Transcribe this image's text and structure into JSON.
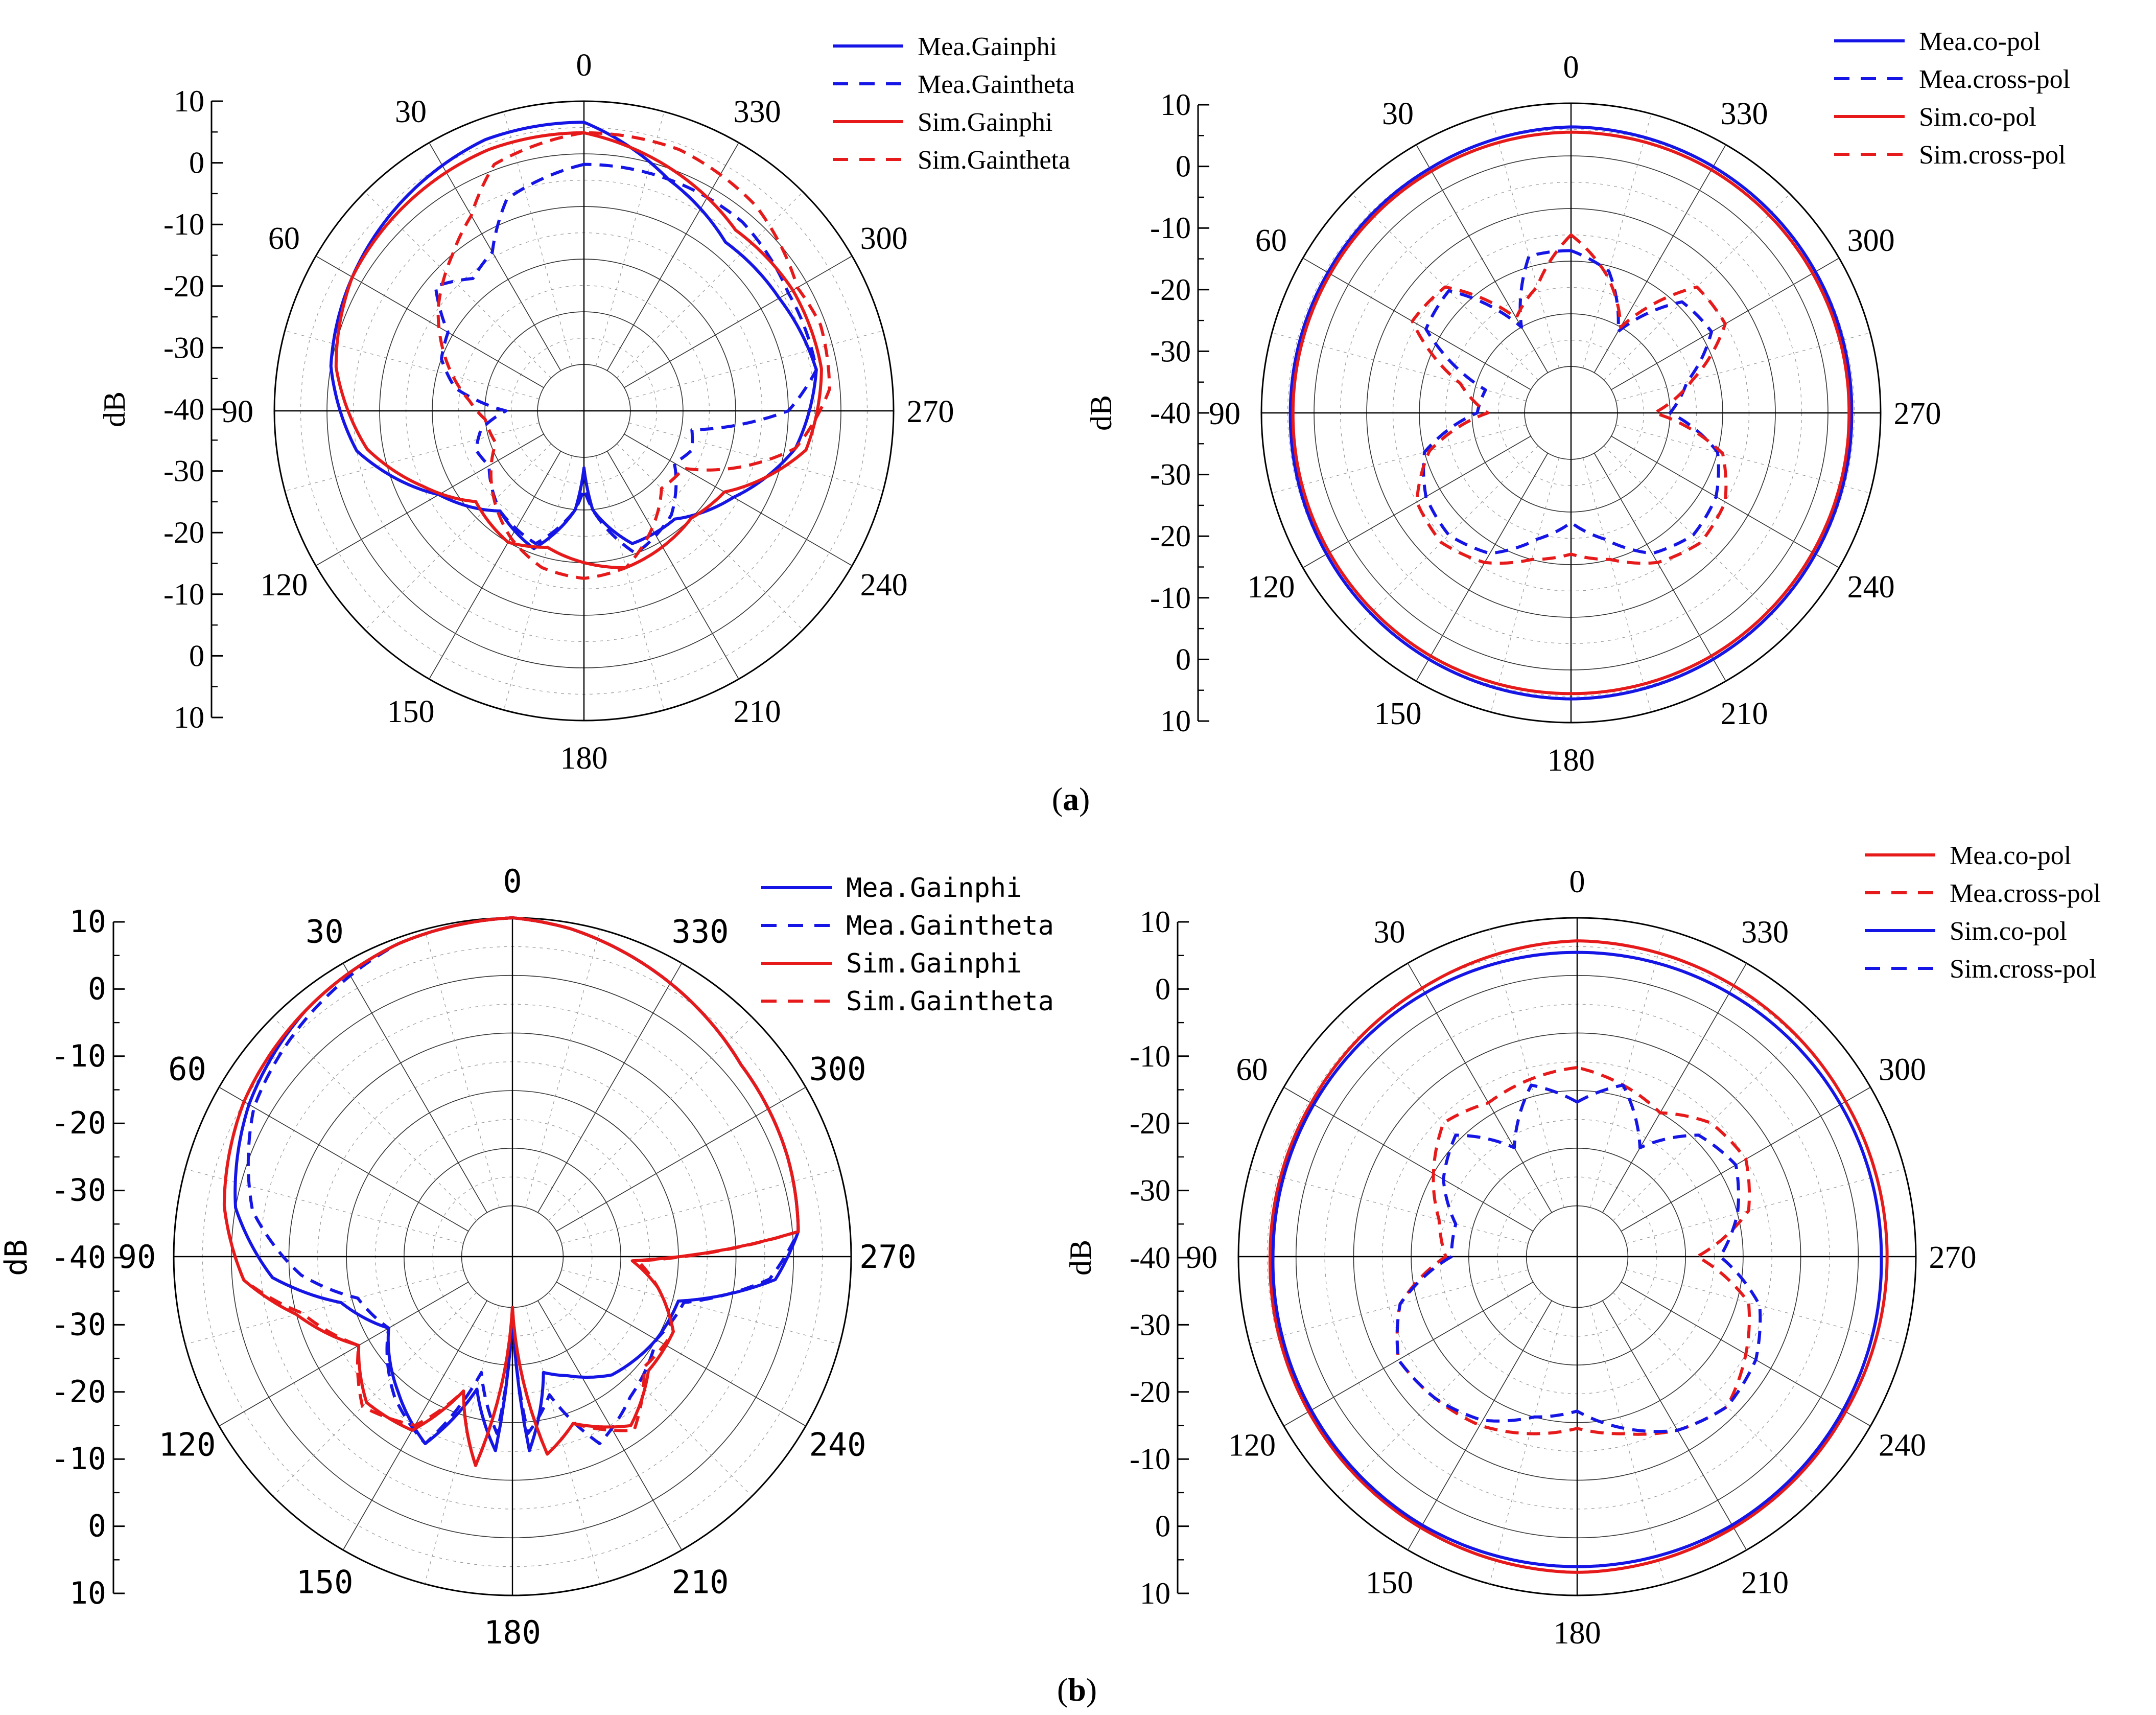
{
  "figure": {
    "caption_a": "a",
    "caption_b": "b"
  },
  "colors": {
    "blue": "#1515e6",
    "red": "#e61a1a",
    "grid": "#000000"
  },
  "chart_data": [
    {
      "id": "a-left",
      "type": "polar-line",
      "unit_label": "dB",
      "radial_ticks": [
        "10",
        "0",
        "-10",
        "-20",
        "-30",
        "-40",
        "-30",
        "-20",
        "-10",
        "0",
        "10"
      ],
      "angle_labels": [
        "0",
        "30",
        "60",
        "90",
        "120",
        "150",
        "180",
        "210",
        "240",
        "270",
        "300",
        "330"
      ],
      "rlim": [
        -40,
        10
      ],
      "angle_direction": "counterclockwise",
      "legend": [
        "Mea.Gainphi",
        "Mea.Gaintheta",
        "Sim.Gainphi",
        "Sim.Gaintheta"
      ],
      "series": [
        {
          "name": "Mea.Gainphi",
          "style": "solid",
          "color": "blue",
          "angle": [
            0,
            20,
            40,
            60,
            80,
            100,
            120,
            140,
            160,
            175,
            180,
            185,
            200,
            220,
            240,
            260,
            280,
            300,
            320,
            340,
            360
          ],
          "value": [
            6,
            6,
            4,
            2,
            0,
            -5,
            -17,
            -24,
            -21,
            -30,
            -38,
            -30,
            -22,
            -22,
            -16,
            -8,
            -4,
            -6,
            -7,
            -2,
            6
          ]
        },
        {
          "name": "Mea.Gaintheta",
          "style": "dashed",
          "color": "blue",
          "angle": [
            0,
            20,
            30,
            40,
            50,
            60,
            70,
            80,
            90,
            100,
            110,
            120,
            140,
            160,
            175,
            180,
            185,
            200,
            220,
            240,
            250,
            260,
            270,
            280,
            300,
            320,
            340,
            360
          ],
          "value": [
            -2,
            -6,
            -14,
            -16,
            -12,
            -19,
            -20,
            -24,
            -34,
            -29,
            -27,
            -28,
            -24,
            -22,
            -30,
            -34,
            -30,
            -20,
            -23,
            -29,
            -27,
            -28,
            -10,
            -4,
            -4,
            -2,
            -2,
            -2
          ]
        },
        {
          "name": "Sim.Gainphi",
          "style": "solid",
          "color": "red",
          "angle": [
            0,
            20,
            40,
            60,
            80,
            100,
            115,
            130,
            150,
            165,
            180,
            195,
            210,
            225,
            240,
            260,
            280,
            300,
            320,
            340,
            360
          ],
          "value": [
            4,
            4,
            3,
            2,
            -1,
            -7,
            -15,
            -22,
            -20,
            -22,
            -20,
            -18,
            -19,
            -20,
            -18,
            -6,
            -3,
            -3,
            -4,
            0,
            4
          ]
        },
        {
          "name": "Sim.Gaintheta",
          "style": "dashed",
          "color": "red",
          "angle": [
            0,
            20,
            30,
            40,
            55,
            70,
            85,
            95,
            110,
            130,
            150,
            165,
            180,
            195,
            210,
            225,
            240,
            260,
            275,
            290,
            300,
            320,
            340,
            360
          ],
          "value": [
            4,
            1,
            -6,
            -10,
            -15,
            -21,
            -27,
            -30,
            -31,
            -26,
            -21,
            -18,
            -17,
            -18,
            -23,
            -28,
            -27,
            -8,
            -2,
            -1,
            -2,
            2,
            4,
            4
          ]
        }
      ]
    },
    {
      "id": "a-right",
      "type": "polar-line",
      "unit_label": "dB",
      "radial_ticks": [
        "10",
        "0",
        "-10",
        "-20",
        "-30",
        "-40",
        "-30",
        "-20",
        "-10",
        "0",
        "10"
      ],
      "angle_labels": [
        "0",
        "30",
        "60",
        "90",
        "120",
        "150",
        "180",
        "210",
        "240",
        "270",
        "300",
        "330"
      ],
      "rlim": [
        -40,
        10
      ],
      "angle_direction": "counterclockwise",
      "legend": [
        "Mea.co-pol",
        "Mea.cross-pol",
        "Sim.co-pol",
        "Sim.cross-pol"
      ],
      "series": [
        {
          "name": "Mea.co-pol",
          "style": "solid",
          "color": "blue",
          "angle": [
            0,
            30,
            60,
            90,
            120,
            150,
            180,
            210,
            240,
            270,
            300,
            330,
            360
          ],
          "value": [
            5.5,
            4.8,
            4.5,
            4.5,
            4.8,
            5.2,
            5.5,
            5.2,
            4.8,
            4.5,
            4.8,
            5.2,
            5.5
          ]
        },
        {
          "name": "Mea.cross-pol",
          "style": "dashed",
          "color": "blue",
          "angle": [
            0,
            15,
            30,
            45,
            60,
            75,
            90,
            105,
            120,
            135,
            150,
            165,
            180,
            195,
            210,
            225,
            240,
            255,
            270,
            285,
            300,
            315,
            330,
            345,
            360
          ],
          "value": [
            -18,
            -18,
            -30,
            -16,
            -17,
            -32,
            -31,
            -20,
            -17,
            -16,
            -18,
            -24,
            -28,
            -24,
            -18,
            -16,
            -17,
            -20,
            -30,
            -26,
            -18,
            -19,
            -31,
            -21,
            -18
          ]
        },
        {
          "name": "Sim.co-pol",
          "style": "solid",
          "color": "red",
          "angle": [
            0,
            30,
            60,
            90,
            120,
            150,
            180,
            210,
            240,
            270,
            300,
            330,
            360
          ],
          "value": [
            4.5,
            4.2,
            4.0,
            4.0,
            4.2,
            4.5,
            4.5,
            4.5,
            4.2,
            4.0,
            4.2,
            4.5,
            4.5
          ]
        },
        {
          "name": "Sim.cross-pol",
          "style": "dashed",
          "color": "red",
          "angle": [
            0,
            15,
            30,
            45,
            60,
            75,
            90,
            105,
            120,
            135,
            150,
            165,
            180,
            195,
            210,
            225,
            240,
            255,
            270,
            285,
            300,
            315,
            330,
            345,
            360
          ],
          "value": [
            -15,
            -24,
            -28,
            -15,
            -14,
            -27,
            -33,
            -21,
            -15,
            -14,
            -16,
            -20,
            -22,
            -20,
            -16,
            -14,
            -15,
            -19,
            -33,
            -25,
            -15,
            -15,
            -30,
            -22,
            -15
          ]
        }
      ]
    },
    {
      "id": "b-left",
      "type": "polar-line",
      "unit_label": "dB",
      "radial_ticks": [
        "10",
        "0",
        "-10",
        "-20",
        "-30",
        "-40",
        "-30",
        "-20",
        "-10",
        "0",
        "10"
      ],
      "angle_labels": [
        "0",
        "30",
        "60",
        "90",
        "120",
        "150",
        "180",
        "210",
        "240",
        "270",
        "300",
        "330"
      ],
      "rlim": [
        -40,
        10
      ],
      "angle_direction": "counterclockwise",
      "legend": [
        "Mea.Gainphi",
        "Mea.Gaintheta",
        "Sim.Gainphi",
        "Sim.Gaintheta"
      ],
      "series": [
        {
          "name": "Mea.Gainphi",
          "style": "solid",
          "color": "blue",
          "angle": [
            0,
            20,
            40,
            60,
            80,
            95,
            105,
            120,
            140,
            155,
            165,
            175,
            180,
            185,
            195,
            205,
            220,
            240,
            255,
            265,
            275,
            290,
            310,
            330,
            350,
            360
          ],
          "value": [
            10,
            9,
            7,
            4,
            0,
            -7,
            -18,
            -24,
            -18,
            -13,
            -25,
            -15,
            -40,
            -15,
            -28,
            -26,
            -22,
            -20,
            -19,
            -3,
            1,
            2,
            3,
            6,
            9,
            10
          ]
        },
        {
          "name": "Mea.Gaintheta",
          "style": "dashed",
          "color": "blue",
          "angle": [
            0,
            20,
            40,
            60,
            80,
            95,
            105,
            120,
            140,
            155,
            165,
            175,
            180,
            185,
            195,
            205,
            220,
            240,
            255,
            265,
            275,
            290,
            310,
            330,
            350,
            360
          ],
          "value": [
            10,
            9,
            6,
            3,
            -3,
            -12,
            -21,
            -24,
            -17,
            -13,
            -28,
            -18,
            -38,
            -18,
            -24,
            -13,
            -17,
            -20,
            -18,
            -4,
            1,
            2,
            3,
            6,
            9,
            10
          ]
        },
        {
          "name": "Sim.Gainphi",
          "style": "solid",
          "color": "red",
          "angle": [
            0,
            20,
            40,
            60,
            80,
            95,
            105,
            120,
            135,
            150,
            160,
            170,
            180,
            190,
            200,
            215,
            230,
            245,
            258,
            268,
            275,
            290,
            310,
            330,
            350,
            360
          ],
          "value": [
            10,
            9,
            7,
            5,
            2,
            -2,
            -10,
            -18,
            -13,
            -14,
            -24,
            -12,
            -40,
            -14,
            -18,
            -13,
            -18,
            -18,
            -23,
            -28,
            1,
            2,
            3,
            6,
            9,
            10
          ]
        },
        {
          "name": "Sim.Gaintheta",
          "style": "dashed",
          "color": "red",
          "angle": [
            0,
            20,
            40,
            60,
            80,
            95,
            105,
            120,
            135,
            150,
            160,
            170,
            180,
            190,
            200,
            215,
            230,
            245,
            258,
            268,
            275,
            290,
            310,
            330,
            350,
            360
          ],
          "value": [
            10,
            9,
            7,
            5,
            2,
            -2,
            -11,
            -18,
            -12,
            -15,
            -24,
            -12,
            -40,
            -14,
            -18,
            -12,
            -19,
            -18,
            -23,
            -27,
            1,
            2,
            3,
            6,
            9,
            10
          ]
        }
      ]
    },
    {
      "id": "b-right",
      "type": "polar-line",
      "unit_label": "dB",
      "radial_ticks": [
        "10",
        "0",
        "-10",
        "-20",
        "-30",
        "-40",
        "-30",
        "-20",
        "-10",
        "0",
        "10"
      ],
      "angle_labels": [
        "0",
        "30",
        "60",
        "90",
        "120",
        "150",
        "180",
        "210",
        "240",
        "270",
        "300",
        "330"
      ],
      "rlim": [
        -40,
        10
      ],
      "angle_direction": "counterclockwise",
      "legend": [
        "Mea.co-pol",
        "Mea.cross-pol",
        "Sim.co-pol",
        "Sim.cross-pol"
      ],
      "series": [
        {
          "name": "Mea.co-pol",
          "style": "solid",
          "color": "red",
          "angle": [
            0,
            30,
            60,
            90,
            120,
            150,
            180,
            210,
            240,
            270,
            300,
            330,
            360
          ],
          "value": [
            6,
            5,
            4.5,
            4.5,
            5,
            5.5,
            6,
            5.5,
            5,
            5,
            5,
            5.5,
            6
          ]
        },
        {
          "name": "Mea.cross-pol",
          "style": "dashed",
          "color": "red",
          "angle": [
            0,
            15,
            30,
            45,
            60,
            75,
            90,
            105,
            120,
            135,
            150,
            165,
            180,
            195,
            210,
            225,
            240,
            255,
            270,
            285,
            300,
            315,
            330,
            345,
            360
          ],
          "value": [
            -16,
            -17,
            -18,
            -16,
            -20,
            -24,
            -26,
            -17,
            -13,
            -14,
            -15,
            -17,
            -19,
            -17,
            -14,
            -12,
            -15,
            -18,
            -28,
            -18,
            -15,
            -16,
            -20,
            -18,
            -16
          ]
        },
        {
          "name": "Sim.co-pol",
          "style": "solid",
          "color": "blue",
          "angle": [
            0,
            30,
            60,
            90,
            120,
            150,
            180,
            210,
            240,
            270,
            300,
            330,
            360
          ],
          "value": [
            4,
            4,
            4,
            4,
            4.5,
            5,
            5,
            5,
            4.5,
            4,
            4,
            4,
            4
          ]
        },
        {
          "name": "Sim.cross-pol",
          "style": "dashed",
          "color": "blue",
          "angle": [
            0,
            15,
            30,
            45,
            60,
            75,
            90,
            105,
            120,
            135,
            150,
            165,
            180,
            195,
            210,
            225,
            240,
            255,
            270,
            285,
            300,
            315,
            330,
            345,
            360
          ],
          "value": [
            -22,
            -18,
            -27,
            -19,
            -22,
            -27,
            -27,
            -17,
            -13,
            -14,
            -16,
            -20,
            -22,
            -18,
            -14,
            -12,
            -13,
            -16,
            -24,
            -20,
            -17,
            -19,
            -27,
            -18,
            -22
          ]
        }
      ]
    }
  ]
}
